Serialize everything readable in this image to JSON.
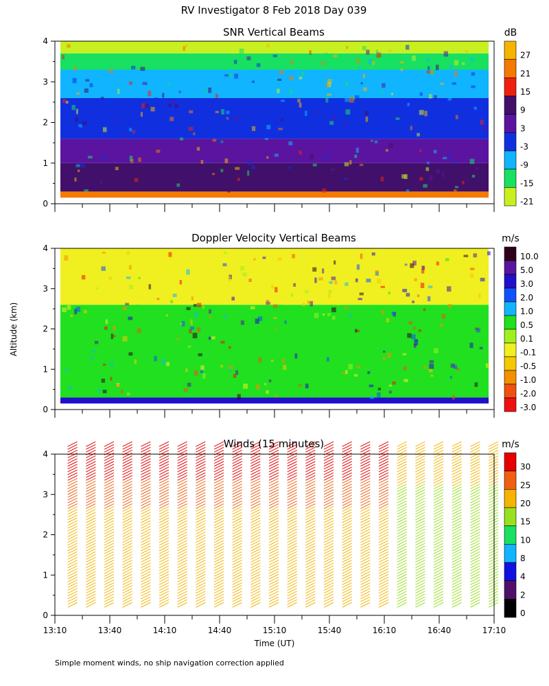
{
  "figure": {
    "title": "RV Investigator   8 Feb 2018 Day 039",
    "ylabel": "Altitude (km)",
    "xlabel": "Time (UT)",
    "footnote": "Simple moment winds, no ship navigation correction applied"
  },
  "chart_data": [
    {
      "type": "heatmap",
      "title": "SNR Vertical Beams",
      "ylabel": "Altitude (km)",
      "ylim": [
        0,
        4
      ],
      "yticks": [
        "0",
        "1",
        "2",
        "3",
        "4"
      ],
      "colorbar": {
        "unit": "dB",
        "labels": [
          "27",
          "21",
          "15",
          "9",
          "3",
          "-3",
          "-9",
          "-15",
          "-21"
        ],
        "colors": [
          "#f5b400",
          "#f57a00",
          "#f02010",
          "#40106a",
          "#5a14a0",
          "#1030e0",
          "#10b4ff",
          "#18e060",
          "#c8f020"
        ]
      },
      "layers_by_altitude_km": [
        {
          "from": 0.15,
          "to": 0.3,
          "value": "21"
        },
        {
          "from": 0.3,
          "to": 1.0,
          "value": "9"
        },
        {
          "from": 1.0,
          "to": 1.6,
          "value": "3"
        },
        {
          "from": 1.6,
          "to": 2.6,
          "value": "-3"
        },
        {
          "from": 2.6,
          "to": 3.3,
          "value": "-9"
        },
        {
          "from": 3.3,
          "to": 3.7,
          "value": "-15"
        },
        {
          "from": 3.7,
          "to": 4.0,
          "value": "-21"
        }
      ]
    },
    {
      "type": "heatmap",
      "title": "Doppler Velocity Vertical Beams",
      "ylim": [
        0,
        4
      ],
      "yticks": [
        "0",
        "1",
        "2",
        "3",
        "4"
      ],
      "colorbar": {
        "unit": "m/s",
        "labels": [
          "10.0",
          "5.0",
          "3.0",
          "2.0",
          "1.0",
          "0.5",
          "0.1",
          "-0.1",
          "-0.5",
          "-1.0",
          "-2.0",
          "-3.0"
        ],
        "colors": [
          "#30001a",
          "#5a14a0",
          "#2010c8",
          "#1050ff",
          "#10b4ff",
          "#20e020",
          "#a0f020",
          "#f0f020",
          "#f5c800",
          "#f59000",
          "#f05010",
          "#f01010"
        ]
      },
      "layers_by_altitude_km": [
        {
          "from": 0.15,
          "to": 0.3,
          "value": "3.0"
        },
        {
          "from": 0.3,
          "to": 2.6,
          "value": "0.5"
        },
        {
          "from": 2.6,
          "to": 4.0,
          "value": "-0.1"
        }
      ]
    },
    {
      "type": "scatter",
      "title": "Winds (15 minutes)",
      "ylim": [
        0,
        4
      ],
      "yticks": [
        "0",
        "1",
        "2",
        "3",
        "4"
      ],
      "xticks": [
        "13:10",
        "13:40",
        "14:10",
        "14:40",
        "15:10",
        "15:40",
        "16:10",
        "16:40",
        "17:10"
      ],
      "xlim": [
        "13:10",
        "17:10"
      ],
      "colorbar": {
        "unit": "m/s",
        "labels": [
          "30",
          "25",
          "20",
          "15",
          "10",
          "8",
          "4",
          "2",
          "0"
        ],
        "colors": [
          "#e80000",
          "#f06010",
          "#f5b400",
          "#98e020",
          "#18e060",
          "#10b4ff",
          "#1010e0",
          "#50106a",
          "#000000"
        ]
      },
      "profile_times": [
        "13:17",
        "13:27",
        "13:37",
        "13:47",
        "13:57",
        "14:07",
        "14:17",
        "14:27",
        "14:37",
        "14:47",
        "14:57",
        "15:07",
        "15:17",
        "15:27",
        "15:37",
        "15:47",
        "15:57",
        "16:07",
        "16:17",
        "16:27",
        "16:37",
        "16:47",
        "16:57",
        "17:07"
      ],
      "profile_altitude_km": [
        0.2,
        4.2
      ]
    }
  ]
}
